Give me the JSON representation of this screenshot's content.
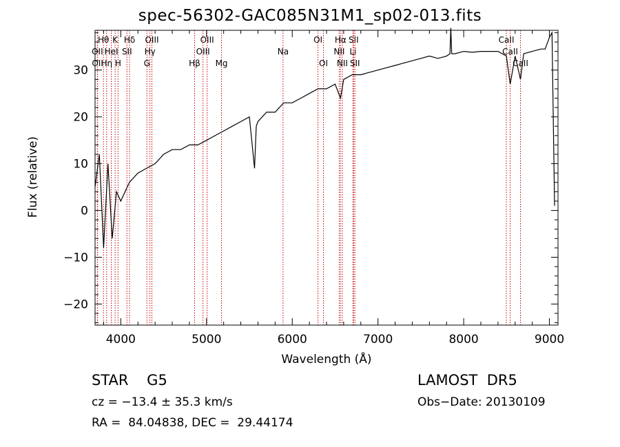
{
  "chart_data": {
    "type": "line",
    "title": "spec-56302-GAC085N31M1_sp02-013.fits",
    "xlabel": "Wavelength (Å)",
    "ylabel": "Flux (relative)",
    "xlim": [
      3700,
      9100
    ],
    "ylim": [
      -24.5,
      38.5
    ],
    "xticks": [
      4000,
      5000,
      6000,
      7000,
      8000,
      9000
    ],
    "xtick_labels": [
      "4000",
      "5000",
      "6000",
      "7000",
      "8000",
      "9000"
    ],
    "yticks": [
      -20,
      -10,
      0,
      10,
      20,
      30
    ],
    "ytick_labels": [
      "−20",
      "−10",
      "0",
      "10",
      "20",
      "30"
    ],
    "grid": false,
    "legend": "none",
    "series": [
      {
        "x": [
          3700,
          3750,
          3800,
          3850,
          3900,
          3950,
          4000,
          4100,
          4200,
          4300,
          4400,
          4500,
          4600,
          4700,
          4800,
          4900,
          5000,
          5100,
          5200,
          5300,
          5400,
          5500,
          5560,
          5580,
          5600,
          5700,
          5800,
          5900,
          6000,
          6100,
          6200,
          6300,
          6400,
          6500,
          6563,
          6600,
          6700,
          6800,
          6900,
          7000,
          7100,
          7200,
          7300,
          7400,
          7500,
          7600,
          7700,
          7800,
          7840,
          7850,
          7860,
          7900,
          8000,
          8100,
          8200,
          8300,
          8400,
          8498,
          8542,
          8600,
          8662,
          8700,
          8800,
          8900,
          8950,
          9000,
          9030,
          9060
        ],
        "y": [
          5,
          12,
          -8,
          10,
          -6,
          4,
          2,
          6,
          8,
          9,
          10,
          12,
          13,
          13,
          14,
          14,
          15,
          16,
          17,
          18,
          19,
          20,
          9,
          18,
          19,
          21,
          21,
          23,
          23,
          24,
          25,
          26,
          26,
          27,
          24,
          28,
          29,
          29,
          29.5,
          30,
          30.5,
          31,
          31.5,
          32,
          32.5,
          33,
          32.5,
          33,
          33.5,
          39,
          33.5,
          33.5,
          34,
          33.8,
          34,
          34,
          34,
          33,
          27,
          33,
          28,
          33.5,
          34,
          34.5,
          34.5,
          37,
          38,
          1
        ],
        "color": "#000000"
      }
    ],
    "spectral_lines": [
      {
        "name": "Hθ",
        "x": 3798,
        "row": 0
      },
      {
        "name": "OII",
        "x": 3727,
        "row": 1
      },
      {
        "name": "OII",
        "x": 3729,
        "row": 2
      },
      {
        "name": "K",
        "x": 3934,
        "row": 0
      },
      {
        "name": "HeI",
        "x": 3889,
        "row": 1
      },
      {
        "name": "Hη",
        "x": 3835,
        "row": 2
      },
      {
        "name": "Hδ",
        "x": 4102,
        "row": 0
      },
      {
        "name": "SII",
        "x": 4072,
        "row": 1
      },
      {
        "name": "H",
        "x": 3968,
        "row": 2
      },
      {
        "name": "OIII",
        "x": 4363,
        "row": 0
      },
      {
        "name": "Hγ",
        "x": 4340,
        "row": 1
      },
      {
        "name": "G",
        "x": 4305,
        "row": 2
      },
      {
        "name": "OIII",
        "x": 5007,
        "row": 0
      },
      {
        "name": "OIII",
        "x": 4959,
        "row": 1
      },
      {
        "name": "Hβ",
        "x": 4861,
        "row": 2
      },
      {
        "name": "Mg",
        "x": 5175,
        "row": 2
      },
      {
        "name": "Na",
        "x": 5893,
        "row": 1
      },
      {
        "name": "OI",
        "x": 6300,
        "row": 0
      },
      {
        "name": "OI",
        "x": 6364,
        "row": 2
      },
      {
        "name": "Hα",
        "x": 6563,
        "row": 0
      },
      {
        "name": "NII",
        "x": 6548,
        "row": 1
      },
      {
        "name": "NII",
        "x": 6584,
        "row": 2
      },
      {
        "name": "SII",
        "x": 6716,
        "row": 0
      },
      {
        "name": "Li",
        "x": 6708,
        "row": 1
      },
      {
        "name": "SII",
        "x": 6731,
        "row": 2
      },
      {
        "name": "CaII",
        "x": 8498,
        "row": 0
      },
      {
        "name": "CaII",
        "x": 8542,
        "row": 1
      },
      {
        "name": "CaII",
        "x": 8662,
        "row": 2
      }
    ]
  },
  "info": {
    "class_line": "STAR    G5",
    "survey": "LAMOST  DR5",
    "cz": "cz = −13.4 ± 35.3 km/s",
    "obs_date": "Obs−Date: 20130109",
    "coords": "RA =  84.04838, DEC =  29.44174"
  }
}
